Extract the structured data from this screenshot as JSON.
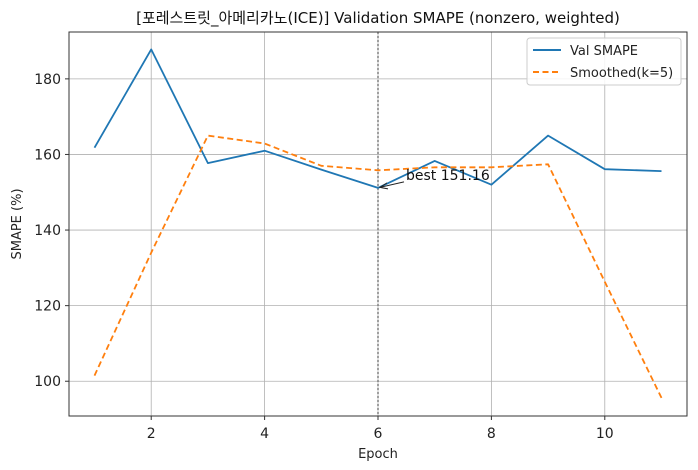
{
  "chart_data": {
    "type": "line",
    "title": "[포레스트릿_아메리카노(ICE)] Validation SMAPE (nonzero, weighted)",
    "xlabel": "Epoch",
    "ylabel": "SMAPE (%)",
    "xlim": [
      0.55,
      11.45
    ],
    "ylim": [
      90.8,
      192.4
    ],
    "xticks": [
      2,
      4,
      6,
      8,
      10
    ],
    "yticks": [
      100,
      120,
      140,
      160,
      180
    ],
    "grid": true,
    "legend_position": "top-right",
    "x": [
      1,
      2,
      3,
      4,
      5,
      6,
      7,
      8,
      9,
      10,
      11
    ],
    "series": [
      {
        "name": "Val SMAPE",
        "color": "#1f77b4",
        "style": "solid",
        "values": [
          161.8,
          187.8,
          157.7,
          161.0,
          156.0,
          151.16,
          158.3,
          152.0,
          165.0,
          156.1,
          155.6
        ]
      },
      {
        "name": "Smoothed(k=5)",
        "color": "#ff7f0e",
        "style": "dashed",
        "values": [
          101.5,
          134.0,
          165.0,
          162.9,
          157.0,
          155.8,
          156.6,
          156.6,
          157.4,
          126.3,
          95.6
        ]
      }
    ],
    "vline": {
      "x": 6,
      "color": "#808080",
      "style": "dotted"
    },
    "annotation": {
      "text": "best 151.16",
      "x": 6,
      "y": 151.16
    }
  }
}
